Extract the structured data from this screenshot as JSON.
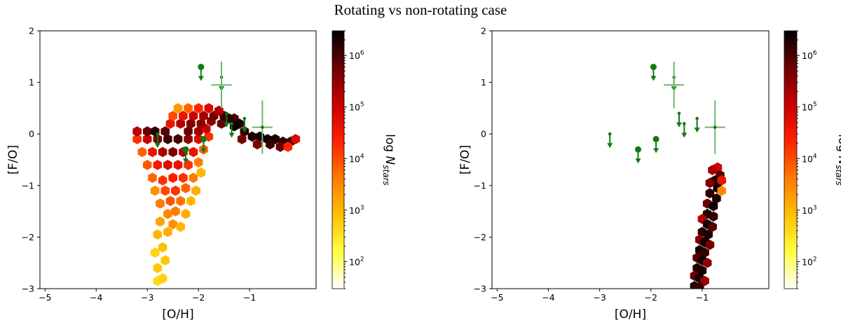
{
  "title": "Rotating vs non-rotating case",
  "chart_data": [
    {
      "type": "heatmap",
      "kind": "hexbin",
      "xlabel": "[O/H]",
      "ylabel": "[F/O]",
      "xlim": [
        -5.1,
        0.3
      ],
      "ylim": [
        -3,
        2
      ],
      "xticks": [
        -5,
        -4,
        -3,
        -2,
        -1
      ],
      "yticks": [
        -3,
        -2,
        -1,
        0,
        1,
        2
      ],
      "xtick_labels": [
        "−5",
        "−4",
        "−3",
        "−2",
        "−1"
      ],
      "ytick_labels": [
        "−3",
        "−2",
        "−1",
        "0",
        "1",
        "2"
      ],
      "colorbar": {
        "label_prefix": "log ",
        "label_var": "N",
        "label_sub": "stars",
        "scale": "log",
        "range": [
          30,
          3000000
        ],
        "tick_values": [
          100,
          1000,
          10000,
          100000,
          1000000
        ],
        "tick_bases": [
          "10",
          "10",
          "10",
          "10",
          "10"
        ],
        "tick_exps": [
          "2",
          "3",
          "4",
          "5",
          "6"
        ],
        "colormap": [
          "#ffffff",
          "#ffff40",
          "#ffc000",
          "#ff7a00",
          "#ff2000",
          "#c80000",
          "#6e0000",
          "#000000"
        ]
      },
      "hex_density": [
        {
          "x": -2.8,
          "y": -2.85,
          "logN": 2.6
        },
        {
          "x": -2.7,
          "y": -2.8,
          "logN": 2.7
        },
        {
          "x": -2.8,
          "y": -2.6,
          "logN": 2.8
        },
        {
          "x": -2.65,
          "y": -2.45,
          "logN": 2.8
        },
        {
          "x": -2.85,
          "y": -2.3,
          "logN": 2.7
        },
        {
          "x": -2.7,
          "y": -2.2,
          "logN": 2.9
        },
        {
          "x": -2.8,
          "y": -1.95,
          "logN": 3.0
        },
        {
          "x": -2.6,
          "y": -1.9,
          "logN": 3.1
        },
        {
          "x": -2.75,
          "y": -1.7,
          "logN": 3.2
        },
        {
          "x": -2.5,
          "y": -1.75,
          "logN": 3.4
        },
        {
          "x": -2.35,
          "y": -1.8,
          "logN": 3.0
        },
        {
          "x": -2.6,
          "y": -1.55,
          "logN": 3.5
        },
        {
          "x": -2.45,
          "y": -1.5,
          "logN": 3.6
        },
        {
          "x": -2.25,
          "y": -1.55,
          "logN": 3.1
        },
        {
          "x": -2.75,
          "y": -1.35,
          "logN": 3.6
        },
        {
          "x": -2.55,
          "y": -1.3,
          "logN": 3.9
        },
        {
          "x": -2.35,
          "y": -1.3,
          "logN": 3.7
        },
        {
          "x": -2.15,
          "y": -1.3,
          "logN": 3.0
        },
        {
          "x": -2.85,
          "y": -1.1,
          "logN": 3.4
        },
        {
          "x": -2.65,
          "y": -1.1,
          "logN": 4.0
        },
        {
          "x": -2.45,
          "y": -1.1,
          "logN": 4.2
        },
        {
          "x": -2.25,
          "y": -1.05,
          "logN": 3.8
        },
        {
          "x": -2.05,
          "y": -1.1,
          "logN": 3.1
        },
        {
          "x": -2.9,
          "y": -0.85,
          "logN": 3.8
        },
        {
          "x": -2.7,
          "y": -0.9,
          "logN": 4.2
        },
        {
          "x": -2.5,
          "y": -0.85,
          "logN": 4.4
        },
        {
          "x": -2.3,
          "y": -0.85,
          "logN": 4.2
        },
        {
          "x": -2.1,
          "y": -0.85,
          "logN": 3.6
        },
        {
          "x": -1.95,
          "y": -0.75,
          "logN": 3.0
        },
        {
          "x": -3.0,
          "y": -0.6,
          "logN": 3.9
        },
        {
          "x": -2.8,
          "y": -0.6,
          "logN": 4.5
        },
        {
          "x": -2.6,
          "y": -0.6,
          "logN": 4.8
        },
        {
          "x": -2.4,
          "y": -0.6,
          "logN": 4.6
        },
        {
          "x": -2.2,
          "y": -0.6,
          "logN": 4.2
        },
        {
          "x": -2.0,
          "y": -0.55,
          "logN": 3.6
        },
        {
          "x": -3.1,
          "y": -0.35,
          "logN": 3.8
        },
        {
          "x": -2.9,
          "y": -0.35,
          "logN": 4.6
        },
        {
          "x": -2.7,
          "y": -0.35,
          "logN": 5.3
        },
        {
          "x": -2.5,
          "y": -0.35,
          "logN": 5.6
        },
        {
          "x": -2.3,
          "y": -0.35,
          "logN": 5.2
        },
        {
          "x": -2.1,
          "y": -0.35,
          "logN": 4.6
        },
        {
          "x": -1.9,
          "y": -0.3,
          "logN": 3.8
        },
        {
          "x": -3.2,
          "y": -0.1,
          "logN": 4.2
        },
        {
          "x": -3.0,
          "y": -0.1,
          "logN": 5.0
        },
        {
          "x": -2.8,
          "y": -0.1,
          "logN": 5.7
        },
        {
          "x": -2.6,
          "y": -0.1,
          "logN": 6.1
        },
        {
          "x": -2.4,
          "y": -0.1,
          "logN": 6.0
        },
        {
          "x": -2.2,
          "y": -0.1,
          "logN": 5.5
        },
        {
          "x": -2.0,
          "y": -0.1,
          "logN": 4.8
        },
        {
          "x": -1.8,
          "y": -0.05,
          "logN": 4.2
        },
        {
          "x": -3.2,
          "y": 0.05,
          "logN": 5.2
        },
        {
          "x": -3.0,
          "y": 0.05,
          "logN": 5.8
        },
        {
          "x": -2.85,
          "y": 0.05,
          "logN": 6.2
        },
        {
          "x": -2.65,
          "y": 0.05,
          "logN": 5.9
        },
        {
          "x": -2.2,
          "y": 0.05,
          "logN": 5.8
        },
        {
          "x": -2.0,
          "y": 0.05,
          "logN": 5.4
        },
        {
          "x": -1.85,
          "y": 0.1,
          "logN": 5.0
        },
        {
          "x": -2.55,
          "y": 0.2,
          "logN": 4.6
        },
        {
          "x": -2.35,
          "y": 0.2,
          "logN": 5.2
        },
        {
          "x": -2.15,
          "y": 0.2,
          "logN": 5.6
        },
        {
          "x": -1.95,
          "y": 0.2,
          "logN": 5.5
        },
        {
          "x": -1.75,
          "y": 0.25,
          "logN": 5.6
        },
        {
          "x": -1.55,
          "y": 0.2,
          "logN": 5.8
        },
        {
          "x": -2.5,
          "y": 0.35,
          "logN": 4.0
        },
        {
          "x": -2.3,
          "y": 0.35,
          "logN": 4.6
        },
        {
          "x": -2.1,
          "y": 0.35,
          "logN": 5.0
        },
        {
          "x": -1.9,
          "y": 0.35,
          "logN": 5.3
        },
        {
          "x": -1.7,
          "y": 0.35,
          "logN": 5.7
        },
        {
          "x": -1.5,
          "y": 0.35,
          "logN": 6.1
        },
        {
          "x": -1.3,
          "y": 0.3,
          "logN": 6.0
        },
        {
          "x": -2.4,
          "y": 0.5,
          "logN": 3.3
        },
        {
          "x": -2.2,
          "y": 0.5,
          "logN": 3.8
        },
        {
          "x": -2.0,
          "y": 0.5,
          "logN": 4.3
        },
        {
          "x": -1.8,
          "y": 0.5,
          "logN": 4.8
        },
        {
          "x": -1.6,
          "y": 0.45,
          "logN": 5.2
        },
        {
          "x": -1.4,
          "y": 0.3,
          "logN": 6.2
        },
        {
          "x": -1.2,
          "y": 0.2,
          "logN": 6.3
        },
        {
          "x": -1.3,
          "y": 0.15,
          "logN": 6.4
        },
        {
          "x": -1.1,
          "y": 0.05,
          "logN": 6.2
        },
        {
          "x": -0.95,
          "y": -0.05,
          "logN": 6.3
        },
        {
          "x": -0.8,
          "y": -0.05,
          "logN": 6.4
        },
        {
          "x": -0.65,
          "y": -0.1,
          "logN": 6.4
        },
        {
          "x": -0.5,
          "y": -0.1,
          "logN": 6.3
        },
        {
          "x": -0.35,
          "y": -0.15,
          "logN": 6.2
        },
        {
          "x": -0.2,
          "y": -0.15,
          "logN": 6.0
        },
        {
          "x": -0.1,
          "y": -0.1,
          "logN": 4.8
        },
        {
          "x": -0.85,
          "y": -0.2,
          "logN": 5.6
        },
        {
          "x": -0.6,
          "y": -0.2,
          "logN": 6.1
        },
        {
          "x": -0.4,
          "y": -0.25,
          "logN": 5.8
        },
        {
          "x": -0.25,
          "y": -0.25,
          "logN": 4.3
        },
        {
          "x": -1.15,
          "y": -0.1,
          "logN": 5.7
        }
      ],
      "observations": {
        "color": "#127a12",
        "errorbar_color": "#6ab86a",
        "points": [
          {
            "x": -1.95,
            "y": 1.3,
            "marker": "large",
            "upper_limit": true
          },
          {
            "x": -1.55,
            "y": 1.1,
            "marker": "small",
            "upper_limit": true
          },
          {
            "x": -1.45,
            "y": 0.4,
            "marker": "small",
            "upper_limit": true
          },
          {
            "x": -1.35,
            "y": 0.2,
            "marker": "small",
            "upper_limit": true
          },
          {
            "x": -1.1,
            "y": 0.3,
            "marker": "small",
            "upper_limit": true
          },
          {
            "x": -2.8,
            "y": 0.0,
            "marker": "small",
            "upper_limit": true
          },
          {
            "x": -2.25,
            "y": -0.3,
            "marker": "large",
            "upper_limit": true
          },
          {
            "x": -1.9,
            "y": -0.1,
            "marker": "large",
            "upper_limit": true
          },
          {
            "x": -1.55,
            "y": 0.95,
            "marker": "none",
            "upper_limit": false,
            "xerr": 0.2,
            "yerr": 0.45
          },
          {
            "x": -0.75,
            "y": 0.13,
            "marker": "small",
            "upper_limit": false,
            "xerr": 0.2,
            "yerr": 0.52
          }
        ]
      }
    },
    {
      "type": "heatmap",
      "kind": "hexbin",
      "xlabel": "[O/H]",
      "ylabel": "[F/O]",
      "xlim": [
        -5.1,
        0.3
      ],
      "ylim": [
        -3,
        2
      ],
      "xticks": [
        -5,
        -4,
        -3,
        -2,
        -1
      ],
      "yticks": [
        -3,
        -2,
        -1,
        0,
        1,
        2
      ],
      "xtick_labels": [
        "−5",
        "−4",
        "−3",
        "−2",
        "−1"
      ],
      "ytick_labels": [
        "−3",
        "−2",
        "−1",
        "0",
        "1",
        "2"
      ],
      "colorbar": {
        "label_prefix": "log ",
        "label_var": "N",
        "label_sub": "stars",
        "scale": "log",
        "range": [
          30,
          3000000
        ],
        "tick_values": [
          100,
          1000,
          10000,
          100000,
          1000000
        ],
        "tick_bases": [
          "10",
          "10",
          "10",
          "10",
          "10"
        ],
        "tick_exps": [
          "2",
          "3",
          "4",
          "5",
          "6"
        ],
        "colormap": [
          "#ffffff",
          "#ffff40",
          "#ffc000",
          "#ff7a00",
          "#ff2000",
          "#c80000",
          "#6e0000",
          "#000000"
        ]
      },
      "hex_density": [
        {
          "x": -0.7,
          "y": -0.65,
          "logN": 4.9
        },
        {
          "x": -0.8,
          "y": -0.7,
          "logN": 5.3
        },
        {
          "x": -0.65,
          "y": -0.8,
          "logN": 5.9
        },
        {
          "x": -0.75,
          "y": -0.9,
          "logN": 6.3
        },
        {
          "x": -0.62,
          "y": -0.9,
          "logN": 4.6
        },
        {
          "x": -0.85,
          "y": -0.95,
          "logN": 5.6
        },
        {
          "x": -0.7,
          "y": -1.05,
          "logN": 6.4
        },
        {
          "x": -0.62,
          "y": -1.1,
          "logN": 3.5
        },
        {
          "x": -0.85,
          "y": -1.15,
          "logN": 6.2
        },
        {
          "x": -0.72,
          "y": -1.25,
          "logN": 6.3
        },
        {
          "x": -0.9,
          "y": -1.35,
          "logN": 5.8
        },
        {
          "x": -0.78,
          "y": -1.4,
          "logN": 6.4
        },
        {
          "x": -0.9,
          "y": -1.55,
          "logN": 6.3
        },
        {
          "x": -0.78,
          "y": -1.6,
          "logN": 6.2
        },
        {
          "x": -1.0,
          "y": -1.65,
          "logN": 5.2
        },
        {
          "x": -0.9,
          "y": -1.75,
          "logN": 6.4
        },
        {
          "x": -0.8,
          "y": -1.8,
          "logN": 5.9
        },
        {
          "x": -1.0,
          "y": -1.9,
          "logN": 6.2
        },
        {
          "x": -0.88,
          "y": -1.95,
          "logN": 6.3
        },
        {
          "x": -1.05,
          "y": -2.05,
          "logN": 5.6
        },
        {
          "x": -0.95,
          "y": -2.1,
          "logN": 6.4
        },
        {
          "x": -0.85,
          "y": -2.15,
          "logN": 5.7
        },
        {
          "x": -1.05,
          "y": -2.25,
          "logN": 6.3
        },
        {
          "x": -0.95,
          "y": -2.3,
          "logN": 6.1
        },
        {
          "x": -1.1,
          "y": -2.4,
          "logN": 5.9
        },
        {
          "x": -1.0,
          "y": -2.45,
          "logN": 6.4
        },
        {
          "x": -0.9,
          "y": -2.5,
          "logN": 5.5
        },
        {
          "x": -1.1,
          "y": -2.6,
          "logN": 6.2
        },
        {
          "x": -1.0,
          "y": -2.65,
          "logN": 6.3
        },
        {
          "x": -1.15,
          "y": -2.75,
          "logN": 5.8
        },
        {
          "x": -1.05,
          "y": -2.8,
          "logN": 6.4
        },
        {
          "x": -0.95,
          "y": -2.85,
          "logN": 5.4
        },
        {
          "x": -1.15,
          "y": -2.95,
          "logN": 6.3
        },
        {
          "x": -1.05,
          "y": -2.98,
          "logN": 6.1
        }
      ],
      "observations": {
        "color": "#127a12",
        "errorbar_color": "#6ab86a",
        "points": [
          {
            "x": -1.95,
            "y": 1.3,
            "marker": "large",
            "upper_limit": true
          },
          {
            "x": -1.55,
            "y": 1.1,
            "marker": "small",
            "upper_limit": true
          },
          {
            "x": -1.45,
            "y": 0.4,
            "marker": "small",
            "upper_limit": true
          },
          {
            "x": -1.35,
            "y": 0.2,
            "marker": "small",
            "upper_limit": true
          },
          {
            "x": -1.1,
            "y": 0.3,
            "marker": "small",
            "upper_limit": true
          },
          {
            "x": -2.8,
            "y": 0.0,
            "marker": "small",
            "upper_limit": true
          },
          {
            "x": -2.25,
            "y": -0.3,
            "marker": "large",
            "upper_limit": true
          },
          {
            "x": -1.9,
            "y": -0.1,
            "marker": "large",
            "upper_limit": true
          },
          {
            "x": -1.55,
            "y": 0.95,
            "marker": "none",
            "upper_limit": false,
            "xerr": 0.2,
            "yerr": 0.45
          },
          {
            "x": -0.75,
            "y": 0.13,
            "marker": "small",
            "upper_limit": false,
            "xerr": 0.2,
            "yerr": 0.52
          }
        ]
      }
    }
  ]
}
